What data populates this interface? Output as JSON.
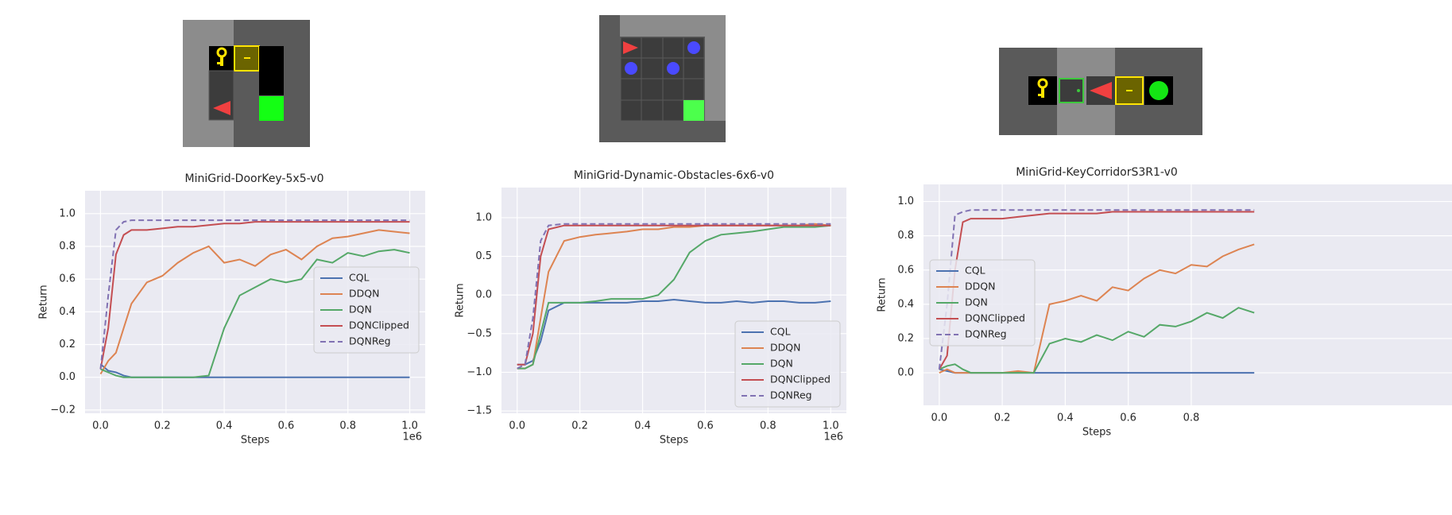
{
  "chart_data": [
    {
      "type": "line",
      "title": "MiniGrid-DoorKey-5x5-v0",
      "x_label": "Steps",
      "y_label": "Return",
      "x_offset_label": "1e6",
      "x": [
        0,
        0.025,
        0.05,
        0.075,
        0.1,
        0.15,
        0.2,
        0.25,
        0.3,
        0.35,
        0.4,
        0.45,
        0.5,
        0.55,
        0.6,
        0.65,
        0.7,
        0.75,
        0.8,
        0.85,
        0.9,
        0.95,
        1.0
      ],
      "series": [
        {
          "name": "CQL",
          "color": "#4c72b0",
          "values": [
            0.08,
            0.04,
            0.03,
            0.01,
            0,
            0,
            0,
            0,
            0,
            0,
            0,
            0,
            0,
            0,
            0,
            0,
            0,
            0,
            0,
            0,
            0,
            0,
            0
          ]
        },
        {
          "name": "DDQN",
          "color": "#dd8452",
          "values": [
            0.02,
            0.1,
            0.15,
            0.3,
            0.45,
            0.58,
            0.62,
            0.7,
            0.76,
            0.8,
            0.7,
            0.72,
            0.68,
            0.75,
            0.78,
            0.72,
            0.8,
            0.85,
            0.86,
            0.88,
            0.9,
            0.89,
            0.88
          ]
        },
        {
          "name": "DQN",
          "color": "#55a868",
          "values": [
            0.05,
            0.03,
            0.01,
            0,
            0,
            0,
            0,
            0,
            0,
            0.01,
            0.3,
            0.5,
            0.55,
            0.6,
            0.58,
            0.6,
            0.72,
            0.7,
            0.76,
            0.74,
            0.77,
            0.78,
            0.76
          ]
        },
        {
          "name": "DQNClipped",
          "color": "#c44e52",
          "values": [
            0.05,
            0.3,
            0.75,
            0.87,
            0.9,
            0.9,
            0.91,
            0.92,
            0.92,
            0.93,
            0.94,
            0.94,
            0.95,
            0.95,
            0.95,
            0.95,
            0.95,
            0.95,
            0.95,
            0.95,
            0.95,
            0.95,
            0.95
          ]
        },
        {
          "name": "DQNReg",
          "color": "#8172b3",
          "dashed": true,
          "values": [
            0.05,
            0.5,
            0.9,
            0.95,
            0.96,
            0.96,
            0.96,
            0.96,
            0.96,
            0.96,
            0.96,
            0.96,
            0.96,
            0.96,
            0.96,
            0.96,
            0.96,
            0.96,
            0.96,
            0.96,
            0.96,
            0.96,
            0.96
          ]
        }
      ],
      "xlim": [
        -0.05,
        1.05
      ],
      "ylim": [
        -0.22,
        1.14
      ],
      "xticks": [
        {
          "value": 0,
          "label": "0.0"
        },
        0.2,
        0.4,
        0.6,
        0.8,
        {
          "value": 1,
          "label": "1.0"
        }
      ],
      "yticks": [
        {
          "value": -0.2,
          "label": "−0.2"
        },
        {
          "value": 0,
          "label": "0.0"
        },
        0.2,
        0.4,
        0.6,
        0.8,
        {
          "value": 1,
          "label": "1.0"
        }
      ],
      "grid": true,
      "legend": "center right"
    },
    {
      "type": "line",
      "title": "MiniGrid-Dynamic-Obstacles-6x6-v0",
      "x_label": "Steps",
      "y_label": "Return",
      "x_offset_label": "1e6",
      "x": [
        0,
        0.025,
        0.05,
        0.075,
        0.1,
        0.15,
        0.2,
        0.25,
        0.3,
        0.35,
        0.4,
        0.45,
        0.5,
        0.55,
        0.6,
        0.65,
        0.7,
        0.75,
        0.8,
        0.85,
        0.9,
        0.95,
        1.0
      ],
      "series": [
        {
          "name": "CQL",
          "color": "#4c72b0",
          "values": [
            -0.9,
            -0.9,
            -0.85,
            -0.6,
            -0.2,
            -0.1,
            -0.1,
            -0.1,
            -0.1,
            -0.1,
            -0.08,
            -0.08,
            -0.06,
            -0.08,
            -0.1,
            -0.1,
            -0.08,
            -0.1,
            -0.08,
            -0.08,
            -0.1,
            -0.1,
            -0.08
          ]
        },
        {
          "name": "DDQN",
          "color": "#dd8452",
          "values": [
            -0.95,
            -0.95,
            -0.9,
            -0.3,
            0.3,
            0.7,
            0.75,
            0.78,
            0.8,
            0.82,
            0.85,
            0.85,
            0.88,
            0.88,
            0.9,
            0.9,
            0.9,
            0.9,
            0.9,
            0.9,
            0.9,
            0.92,
            0.9
          ]
        },
        {
          "name": "DQN",
          "color": "#55a868",
          "values": [
            -0.95,
            -0.95,
            -0.9,
            -0.5,
            -0.1,
            -0.1,
            -0.1,
            -0.08,
            -0.05,
            -0.05,
            -0.05,
            0.0,
            0.2,
            0.55,
            0.7,
            0.78,
            0.8,
            0.82,
            0.85,
            0.88,
            0.88,
            0.88,
            0.9
          ]
        },
        {
          "name": "DQNClipped",
          "color": "#c44e52",
          "values": [
            -0.9,
            -0.9,
            -0.5,
            0.5,
            0.85,
            0.9,
            0.9,
            0.9,
            0.9,
            0.9,
            0.9,
            0.9,
            0.9,
            0.9,
            0.9,
            0.9,
            0.9,
            0.9,
            0.9,
            0.9,
            0.9,
            0.9,
            0.9
          ]
        },
        {
          "name": "DQNReg",
          "color": "#8172b3",
          "dashed": true,
          "values": [
            -0.95,
            -0.9,
            -0.3,
            0.7,
            0.9,
            0.92,
            0.92,
            0.92,
            0.92,
            0.92,
            0.92,
            0.92,
            0.92,
            0.92,
            0.92,
            0.92,
            0.92,
            0.92,
            0.92,
            0.92,
            0.92,
            0.92,
            0.92
          ]
        }
      ],
      "xlim": [
        -0.05,
        1.05
      ],
      "ylim": [
        -1.53,
        1.39
      ],
      "xticks": [
        {
          "value": 0,
          "label": "0.0"
        },
        0.2,
        0.4,
        0.6,
        0.8,
        {
          "value": 1,
          "label": "1.0"
        }
      ],
      "yticks": [
        {
          "value": -1.5,
          "label": "−1.5"
        },
        {
          "value": -1,
          "label": "−1.0"
        },
        {
          "value": -0.5,
          "label": "−0.5"
        },
        {
          "value": 0,
          "label": "0.0"
        },
        0.5,
        {
          "value": 1,
          "label": "1.0"
        }
      ],
      "grid": true,
      "legend": "lower right"
    },
    {
      "type": "line",
      "title": "MiniGrid-KeyCorridorS3R1-v0",
      "x_label": "Steps",
      "y_label": "Return",
      "x": [
        0,
        0.025,
        0.05,
        0.075,
        0.1,
        0.15,
        0.2,
        0.25,
        0.3,
        0.35,
        0.4,
        0.45,
        0.5,
        0.55,
        0.6,
        0.65,
        0.7,
        0.75,
        0.8,
        0.85,
        0.9,
        0.95,
        1.0
      ],
      "series": [
        {
          "name": "CQL",
          "color": "#4c72b0",
          "values": [
            0.02,
            0.01,
            0,
            0,
            0,
            0,
            0,
            0,
            0,
            0,
            0,
            0,
            0,
            0,
            0,
            0,
            0,
            0,
            0,
            0,
            0,
            0,
            0
          ]
        },
        {
          "name": "DDQN",
          "color": "#dd8452",
          "values": [
            0,
            0.02,
            0,
            0,
            0,
            0,
            0,
            0.01,
            0,
            0.4,
            0.42,
            0.45,
            0.42,
            0.5,
            0.48,
            0.55,
            0.6,
            0.58,
            0.63,
            0.62,
            0.68,
            0.72,
            0.75
          ]
        },
        {
          "name": "DQN",
          "color": "#55a868",
          "values": [
            0.02,
            0.04,
            0.05,
            0.02,
            0,
            0,
            0,
            0,
            0,
            0.17,
            0.2,
            0.18,
            0.22,
            0.19,
            0.24,
            0.21,
            0.28,
            0.27,
            0.3,
            0.35,
            0.32,
            0.38,
            0.35
          ]
        },
        {
          "name": "DQNClipped",
          "color": "#c44e52",
          "values": [
            0.02,
            0.1,
            0.6,
            0.88,
            0.9,
            0.9,
            0.9,
            0.91,
            0.92,
            0.93,
            0.93,
            0.93,
            0.93,
            0.94,
            0.94,
            0.94,
            0.94,
            0.94,
            0.94,
            0.94,
            0.94,
            0.94,
            0.94
          ]
        },
        {
          "name": "DQNReg",
          "color": "#8172b3",
          "dashed": true,
          "values": [
            0.02,
            0.4,
            0.92,
            0.94,
            0.95,
            0.95,
            0.95,
            0.95,
            0.95,
            0.95,
            0.95,
            0.95,
            0.95,
            0.95,
            0.95,
            0.95,
            0.95,
            0.95,
            0.95,
            0.95,
            0.95,
            0.95,
            0.95
          ]
        }
      ],
      "xlim": [
        -0.05,
        1.05
      ],
      "ylim": [
        -0.19,
        1.1
      ],
      "xticks": [
        {
          "value": 0,
          "label": "0.0"
        },
        0.2,
        0.4,
        0.6,
        0.8
      ],
      "yticks": [
        {
          "value": 0,
          "label": "0.0"
        },
        0.2,
        0.4,
        0.6,
        0.8,
        {
          "value": 1,
          "label": "1.0"
        }
      ],
      "grid": true,
      "legend": "center left"
    }
  ]
}
